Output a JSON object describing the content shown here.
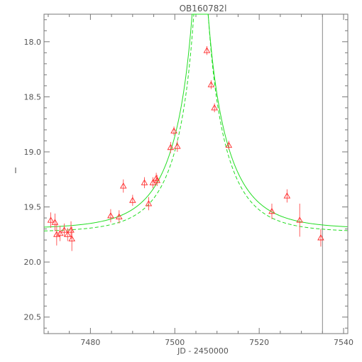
{
  "chart_data": {
    "type": "scatter",
    "title": "OB160782l",
    "xlabel": "JD - 2450000",
    "ylabel": "I",
    "xlim": [
      7469,
      7541
    ],
    "ylim": [
      20.65,
      17.75
    ],
    "y_inverted": true,
    "xticks": [
      7480,
      7500,
      7520,
      7540
    ],
    "xtick_labels": [
      "7480",
      "7500",
      "7520",
      "7540"
    ],
    "yticks": [
      18.0,
      18.5,
      19.0,
      19.5,
      20.0,
      20.5
    ],
    "ytick_labels": [
      "18.0",
      "18.5",
      "19.0",
      "19.5",
      "20.0",
      "20.5"
    ],
    "marker_color": "#ff2a2a",
    "model_color": "#22dd22",
    "vertical_line_x": 7535,
    "points": [
      {
        "x": 7470.6,
        "y": 19.62,
        "err": 0.07
      },
      {
        "x": 7471.6,
        "y": 19.64,
        "err": 0.08
      },
      {
        "x": 7472.0,
        "y": 19.75,
        "err": 0.1
      },
      {
        "x": 7472.8,
        "y": 19.74,
        "err": 0.07
      },
      {
        "x": 7473.8,
        "y": 19.71,
        "err": 0.06
      },
      {
        "x": 7474.6,
        "y": 19.75,
        "err": 0.06
      },
      {
        "x": 7475.4,
        "y": 19.71,
        "err": 0.08
      },
      {
        "x": 7475.6,
        "y": 19.79,
        "err": 0.11
      },
      {
        "x": 7484.8,
        "y": 19.58,
        "err": 0.06
      },
      {
        "x": 7486.8,
        "y": 19.59,
        "err": 0.06
      },
      {
        "x": 7487.8,
        "y": 19.31,
        "err": 0.06
      },
      {
        "x": 7490.0,
        "y": 19.44,
        "err": 0.05
      },
      {
        "x": 7492.8,
        "y": 19.28,
        "err": 0.05
      },
      {
        "x": 7493.8,
        "y": 19.47,
        "err": 0.06
      },
      {
        "x": 7494.8,
        "y": 19.28,
        "err": 0.05
      },
      {
        "x": 7495.6,
        "y": 19.24,
        "err": 0.05
      },
      {
        "x": 7495.8,
        "y": 19.26,
        "err": 0.05
      },
      {
        "x": 7499.0,
        "y": 18.96,
        "err": 0.05
      },
      {
        "x": 7499.8,
        "y": 18.81,
        "err": 0.04
      },
      {
        "x": 7500.6,
        "y": 18.95,
        "err": 0.05
      },
      {
        "x": 7507.6,
        "y": 18.08,
        "err": 0.04
      },
      {
        "x": 7508.6,
        "y": 18.39,
        "err": 0.04
      },
      {
        "x": 7509.4,
        "y": 18.6,
        "err": 0.04
      },
      {
        "x": 7512.8,
        "y": 18.94,
        "err": 0.04
      },
      {
        "x": 7523.0,
        "y": 19.54,
        "err": 0.07
      },
      {
        "x": 7526.6,
        "y": 19.4,
        "err": 0.06
      },
      {
        "x": 7529.6,
        "y": 19.62,
        "err": 0.15
      },
      {
        "x": 7534.6,
        "y": 19.78,
        "err": 0.08
      }
    ],
    "models": [
      {
        "style": "solid",
        "t0": 7506.0,
        "u0": 0.055,
        "tE": 12.0,
        "I_base": 19.7
      },
      {
        "style": "dashed",
        "t0": 7506.2,
        "u0": 0.05,
        "tE": 11.0,
        "I_base": 19.73
      }
    ]
  }
}
